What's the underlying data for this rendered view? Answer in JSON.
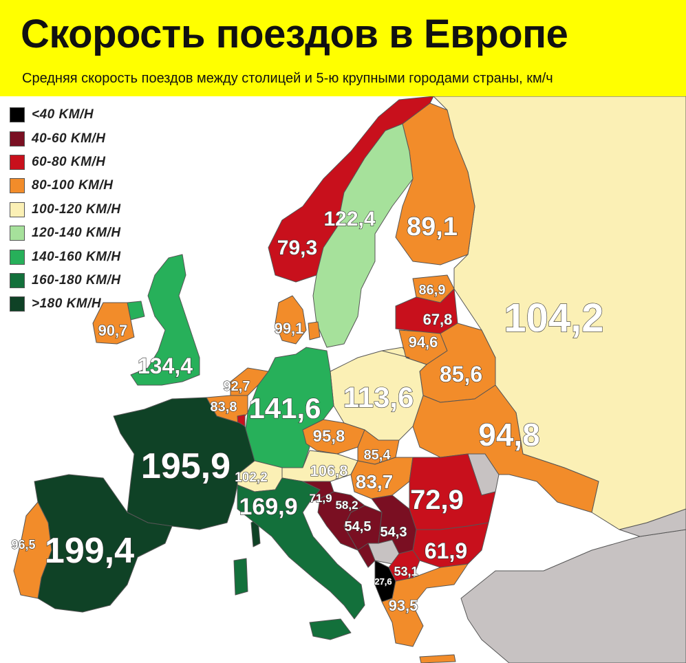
{
  "header": {
    "title": "Скорость поездов в Европе",
    "subtitle": "Средняя скорость поездов между столицей и 5-ю крупными городами страны, км/ч"
  },
  "legend": [
    {
      "label": "<40 KM/H",
      "color": "#000000"
    },
    {
      "label": "40-60 KM/H",
      "color": "#7a0f22"
    },
    {
      "label": "60-80 KM/H",
      "color": "#c8101c"
    },
    {
      "label": "80-100 KM/H",
      "color": "#f28c2a"
    },
    {
      "label": "100-120 KM/H",
      "color": "#fbf0b5"
    },
    {
      "label": "120-140 KM/H",
      "color": "#a6e19b"
    },
    {
      "label": "140-160 KM/H",
      "color": "#27b05a"
    },
    {
      "label": "160-180 KM/H",
      "color": "#13703b"
    },
    {
      "label": ">180 KM/H",
      "color": "#0f4226"
    }
  ],
  "colors": {
    "sea": "#ffffff",
    "no_data": "#c7c2c2",
    "border": "#555555"
  },
  "countries": {
    "norway": {
      "value": "79,3"
    },
    "sweden": {
      "value": "122,4"
    },
    "finland": {
      "value": "89,1"
    },
    "russia": {
      "value": "104,2"
    },
    "estonia": {
      "value": "86,9"
    },
    "latvia": {
      "value": "67,8"
    },
    "lithuania": {
      "value": "94,6"
    },
    "belarus": {
      "value": "85,6"
    },
    "ukraine": {
      "value": "94,8"
    },
    "poland": {
      "value": "113,6"
    },
    "germany": {
      "value": "141,6"
    },
    "denmark": {
      "value": "99,1"
    },
    "netherlands": {
      "value": "92,7"
    },
    "belgium": {
      "value": "83,8"
    },
    "france": {
      "value": "195,9"
    },
    "spain": {
      "value": "199,4"
    },
    "portugal": {
      "value": "96,5"
    },
    "uk": {
      "value": "134,4"
    },
    "ireland": {
      "value": "90,7"
    },
    "switzerland": {
      "value": "102,2"
    },
    "austria": {
      "value": "106,8"
    },
    "czechia": {
      "value": "95,8"
    },
    "slovakia": {
      "value": "85,4"
    },
    "hungary": {
      "value": "83,7"
    },
    "italy": {
      "value": "169,9"
    },
    "slovenia": {
      "value": "71,9"
    },
    "croatia": {
      "value": "58,2"
    },
    "bosnia": {
      "value": "54,5"
    },
    "serbia": {
      "value": "54,3"
    },
    "romania": {
      "value": "72,9"
    },
    "bulgaria": {
      "value": "61,9"
    },
    "north_macedonia": {
      "value": "53,1"
    },
    "albania": {
      "value": "27,6"
    },
    "greece": {
      "value": "93,5"
    }
  }
}
